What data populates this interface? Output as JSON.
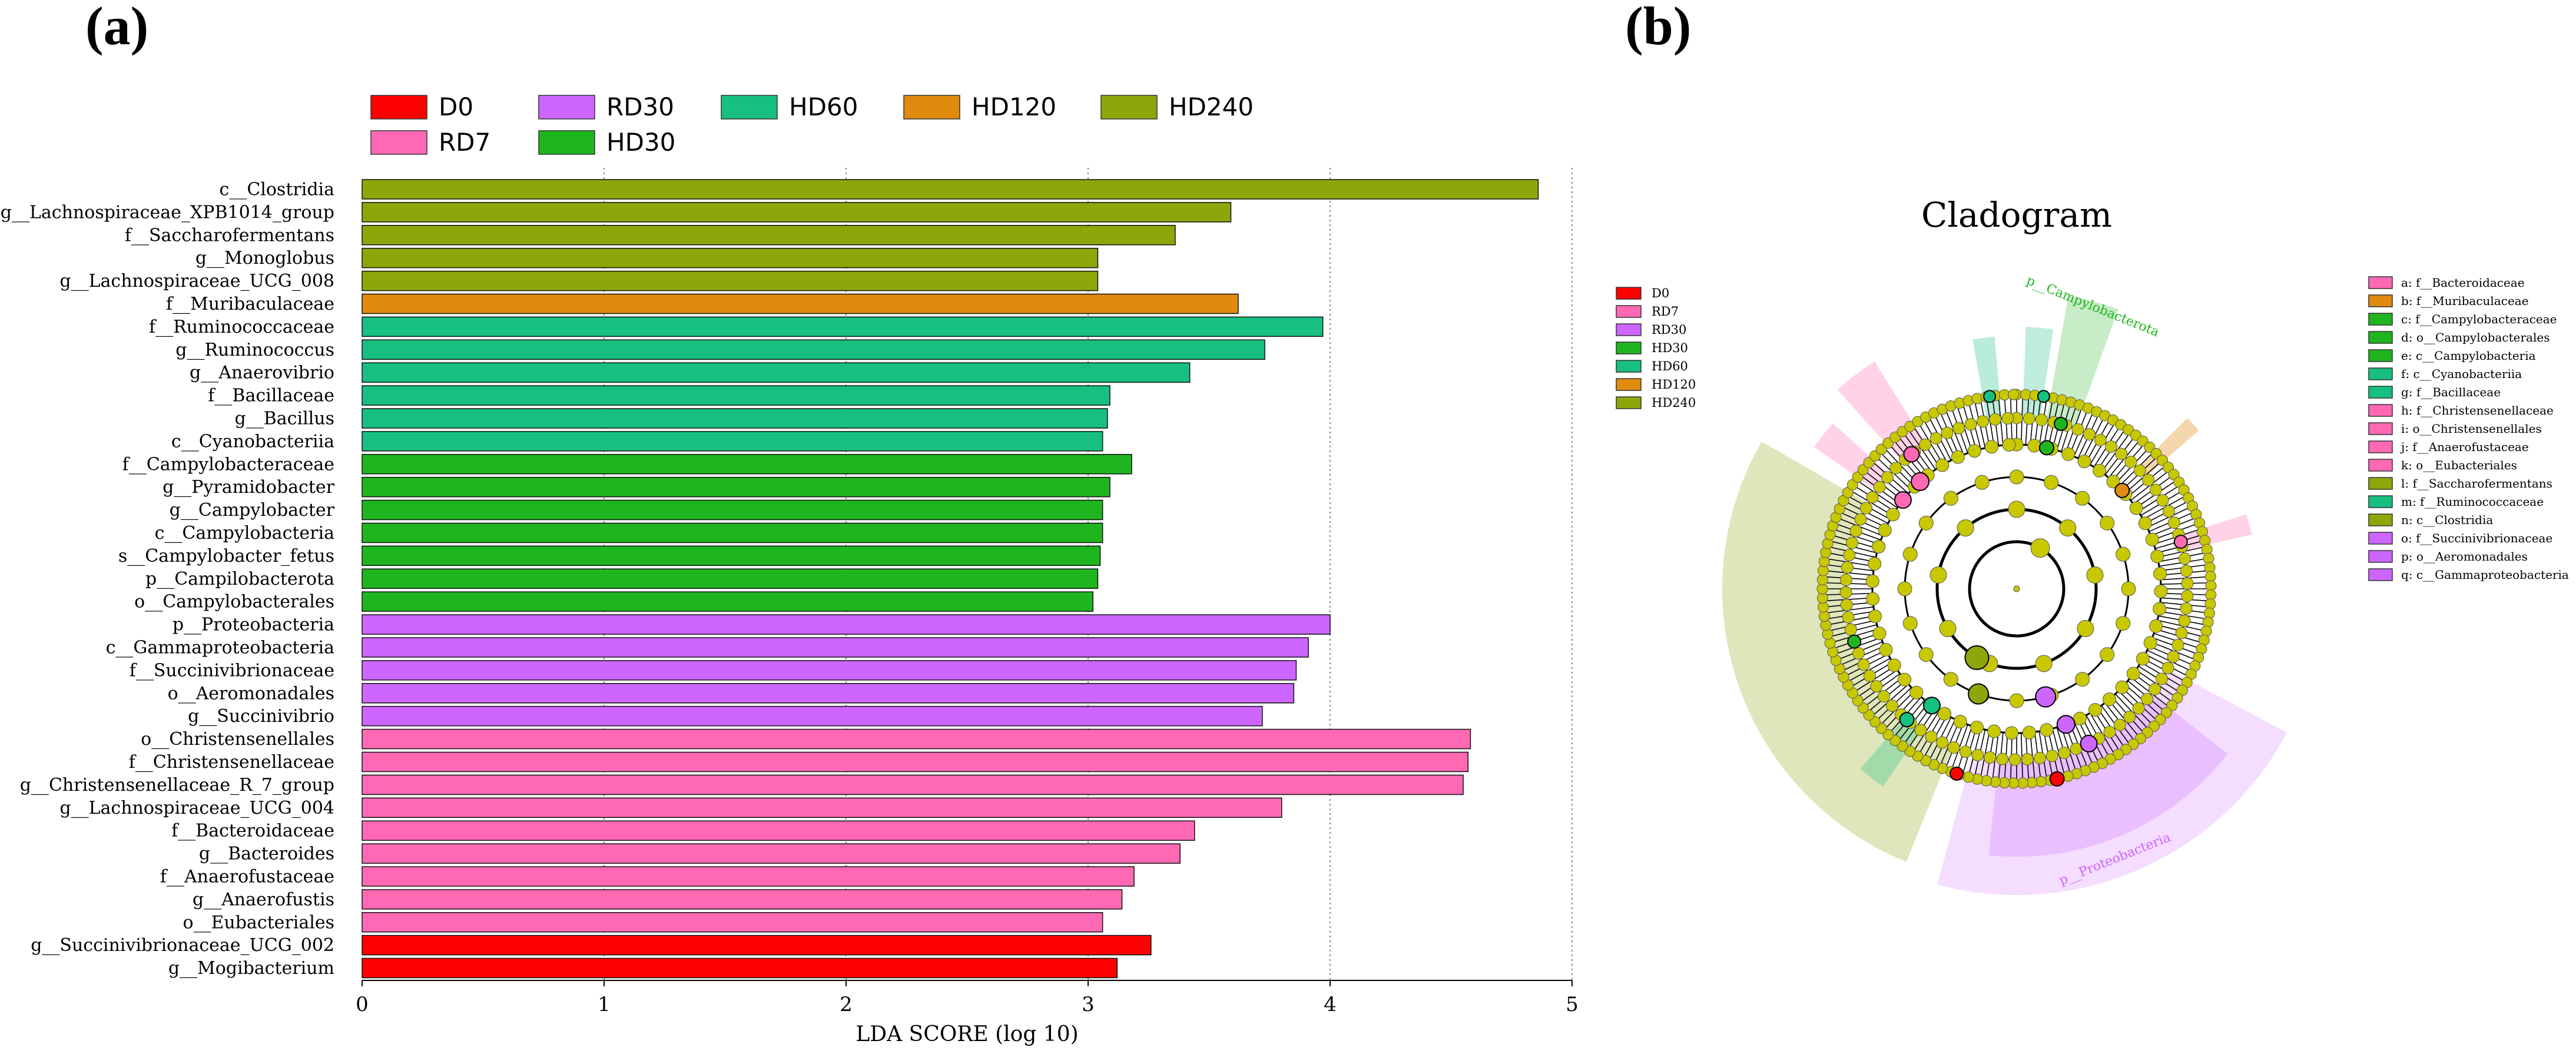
{
  "panels": {
    "a_label": "(a)",
    "b_label": "(b)"
  },
  "groups": [
    {
      "name": "D0",
      "color": "#ff0000"
    },
    {
      "name": "RD7",
      "color": "#ff69b4"
    },
    {
      "name": "RD30",
      "color": "#cc66ff"
    },
    {
      "name": "HD30",
      "color": "#1fb51f"
    },
    {
      "name": "HD60",
      "color": "#17c080"
    },
    {
      "name": "HD120",
      "color": "#e08a10"
    },
    {
      "name": "HD240",
      "color": "#8fa60a"
    }
  ],
  "chart_data": [
    {
      "type": "bar",
      "orientation": "horizontal",
      "xlabel": "LDA SCORE (log 10)",
      "xlim": [
        0,
        5
      ],
      "xticks": [
        0,
        1,
        2,
        3,
        4,
        5
      ],
      "grid": "vertical dotted",
      "legend_placement": "top",
      "bars": [
        {
          "label": "c__Clostridia",
          "value": 4.86,
          "group": "HD240"
        },
        {
          "label": "g__Lachnospiraceae_XPB1014_group",
          "value": 3.59,
          "group": "HD240"
        },
        {
          "label": "f__Saccharofermentans",
          "value": 3.36,
          "group": "HD240"
        },
        {
          "label": "g__Monoglobus",
          "value": 3.04,
          "group": "HD240"
        },
        {
          "label": "g__Lachnospiraceae_UCG_008",
          "value": 3.04,
          "group": "HD240"
        },
        {
          "label": "f__Muribaculaceae",
          "value": 3.62,
          "group": "HD120"
        },
        {
          "label": "f__Ruminococcaceae",
          "value": 3.97,
          "group": "HD60"
        },
        {
          "label": "g__Ruminococcus",
          "value": 3.73,
          "group": "HD60"
        },
        {
          "label": "g__Anaerovibrio",
          "value": 3.42,
          "group": "HD60"
        },
        {
          "label": "f__Bacillaceae",
          "value": 3.09,
          "group": "HD60"
        },
        {
          "label": "g__Bacillus",
          "value": 3.08,
          "group": "HD60"
        },
        {
          "label": "c__Cyanobacteriia",
          "value": 3.06,
          "group": "HD60"
        },
        {
          "label": "f__Campylobacteraceae",
          "value": 3.18,
          "group": "HD30"
        },
        {
          "label": "g__Pyramidobacter",
          "value": 3.09,
          "group": "HD30"
        },
        {
          "label": "g__Campylobacter",
          "value": 3.06,
          "group": "HD30"
        },
        {
          "label": "c__Campylobacteria",
          "value": 3.06,
          "group": "HD30"
        },
        {
          "label": "s__Campylobacter_fetus",
          "value": 3.05,
          "group": "HD30"
        },
        {
          "label": "p__Campilobacterota",
          "value": 3.04,
          "group": "HD30"
        },
        {
          "label": "o__Campylobacterales",
          "value": 3.02,
          "group": "HD30"
        },
        {
          "label": "p__Proteobacteria",
          "value": 4.0,
          "group": "RD30"
        },
        {
          "label": "c__Gammaproteobacteria",
          "value": 3.91,
          "group": "RD30"
        },
        {
          "label": "f__Succinivibrionaceae",
          "value": 3.86,
          "group": "RD30"
        },
        {
          "label": "o__Aeromonadales",
          "value": 3.85,
          "group": "RD30"
        },
        {
          "label": "g__Succinivibrio",
          "value": 3.72,
          "group": "RD30"
        },
        {
          "label": "o__Christensenellales",
          "value": 4.58,
          "group": "RD7"
        },
        {
          "label": "f__Christensenellaceae",
          "value": 4.57,
          "group": "RD7"
        },
        {
          "label": "g__Christensenellaceae_R_7_group",
          "value": 4.55,
          "group": "RD7"
        },
        {
          "label": "g__Lachnospiraceae_UCG_004",
          "value": 3.8,
          "group": "RD7"
        },
        {
          "label": "f__Bacteroidaceae",
          "value": 3.44,
          "group": "RD7"
        },
        {
          "label": "g__Bacteroides",
          "value": 3.38,
          "group": "RD7"
        },
        {
          "label": "f__Anaerofustaceae",
          "value": 3.19,
          "group": "RD7"
        },
        {
          "label": "g__Anaerofustis",
          "value": 3.14,
          "group": "RD7"
        },
        {
          "label": "o__Eubacteriales",
          "value": 3.06,
          "group": "RD7"
        },
        {
          "label": "g__Succinivibrionaceae_UCG_002",
          "value": 3.26,
          "group": "D0"
        },
        {
          "label": "g__Mogibacterium",
          "value": 3.12,
          "group": "D0"
        }
      ]
    },
    {
      "type": "cladogram",
      "title": "Cladogram",
      "sector_labels": [
        "p__Campylobacterota",
        "p__Proteobacteria"
      ],
      "annotations": [
        {
          "key": "a",
          "text": "a: f__Bacteroidaceae",
          "group": "RD7"
        },
        {
          "key": "b",
          "text": "b: f__Muribaculaceae",
          "group": "HD120"
        },
        {
          "key": "c",
          "text": "c: f__Campylobacteraceae",
          "group": "HD30"
        },
        {
          "key": "d",
          "text": "d: o__Campylobacterales",
          "group": "HD30"
        },
        {
          "key": "e",
          "text": "e: c__Campylobacteria",
          "group": "HD30"
        },
        {
          "key": "f",
          "text": "f: c__Cyanobacteriia",
          "group": "HD60"
        },
        {
          "key": "g",
          "text": "g: f__Bacillaceae",
          "group": "HD60"
        },
        {
          "key": "h",
          "text": "h: f__Christensenellaceae",
          "group": "RD7"
        },
        {
          "key": "i",
          "text": "i: o__Christensenellales",
          "group": "RD7"
        },
        {
          "key": "j",
          "text": "j: f__Anaerofustaceae",
          "group": "RD7"
        },
        {
          "key": "k",
          "text": "k: o__Eubacteriales",
          "group": "RD7"
        },
        {
          "key": "l",
          "text": "l: f__Saccharofermentans",
          "group": "HD240"
        },
        {
          "key": "m",
          "text": "m: f__Ruminococcaceae",
          "group": "HD60"
        },
        {
          "key": "n",
          "text": "n: c__Clostridia",
          "group": "HD240"
        },
        {
          "key": "o",
          "text": "o: f__Succinivibrionaceae",
          "group": "RD30"
        },
        {
          "key": "p",
          "text": "p: o__Aeromonadales",
          "group": "RD30"
        },
        {
          "key": "q",
          "text": "q: c__Gammaproteobacteria",
          "group": "RD30"
        }
      ]
    }
  ]
}
